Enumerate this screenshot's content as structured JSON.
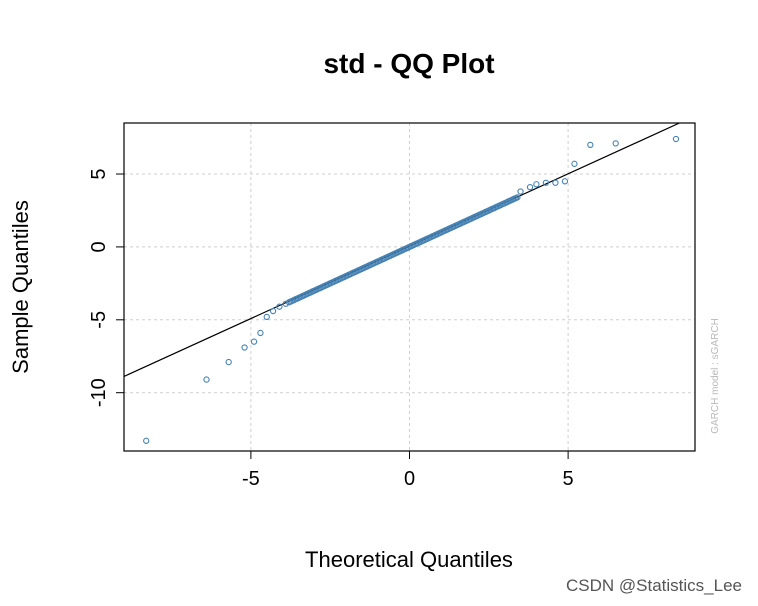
{
  "chart_data": {
    "type": "scatter",
    "title": "std - QQ Plot",
    "xlabel": "Theoretical Quantiles",
    "ylabel": "Sample Quantiles",
    "xlim": [
      -9,
      9
    ],
    "ylim": [
      -14,
      8.5
    ],
    "xticks": [
      -5,
      0,
      5
    ],
    "yticks": [
      -10,
      -5,
      0,
      5
    ],
    "grid": true,
    "reference_line": {
      "slope": 0.993,
      "intercept": 0.05
    },
    "point_color": "#4682B4",
    "side_note": "GARCH model : sGARCH",
    "outlier_points": [
      {
        "x": -8.3,
        "y": -13.3
      },
      {
        "x": -6.4,
        "y": -9.1
      },
      {
        "x": -5.7,
        "y": -7.9
      },
      {
        "x": -5.2,
        "y": -6.9
      },
      {
        "x": -4.9,
        "y": -6.5
      },
      {
        "x": -4.7,
        "y": -5.9
      },
      {
        "x": -4.5,
        "y": -4.8
      },
      {
        "x": -4.3,
        "y": -4.4
      },
      {
        "x": -4.1,
        "y": -4.1
      },
      {
        "x": -3.9,
        "y": -3.9
      },
      {
        "x": 3.5,
        "y": 3.8
      },
      {
        "x": 3.8,
        "y": 4.1
      },
      {
        "x": 4.0,
        "y": 4.3
      },
      {
        "x": 4.3,
        "y": 4.4
      },
      {
        "x": 4.6,
        "y": 4.4
      },
      {
        "x": 4.9,
        "y": 4.5
      },
      {
        "x": 5.2,
        "y": 5.7
      },
      {
        "x": 5.7,
        "y": 7.0
      },
      {
        "x": 6.5,
        "y": 7.1
      },
      {
        "x": 8.4,
        "y": 7.4
      }
    ],
    "dense_segment": {
      "x_from": -3.8,
      "x_to": 3.4,
      "slope": 1.0,
      "intercept": 0.0
    }
  },
  "watermark": "CSDN @Statistics_Lee"
}
